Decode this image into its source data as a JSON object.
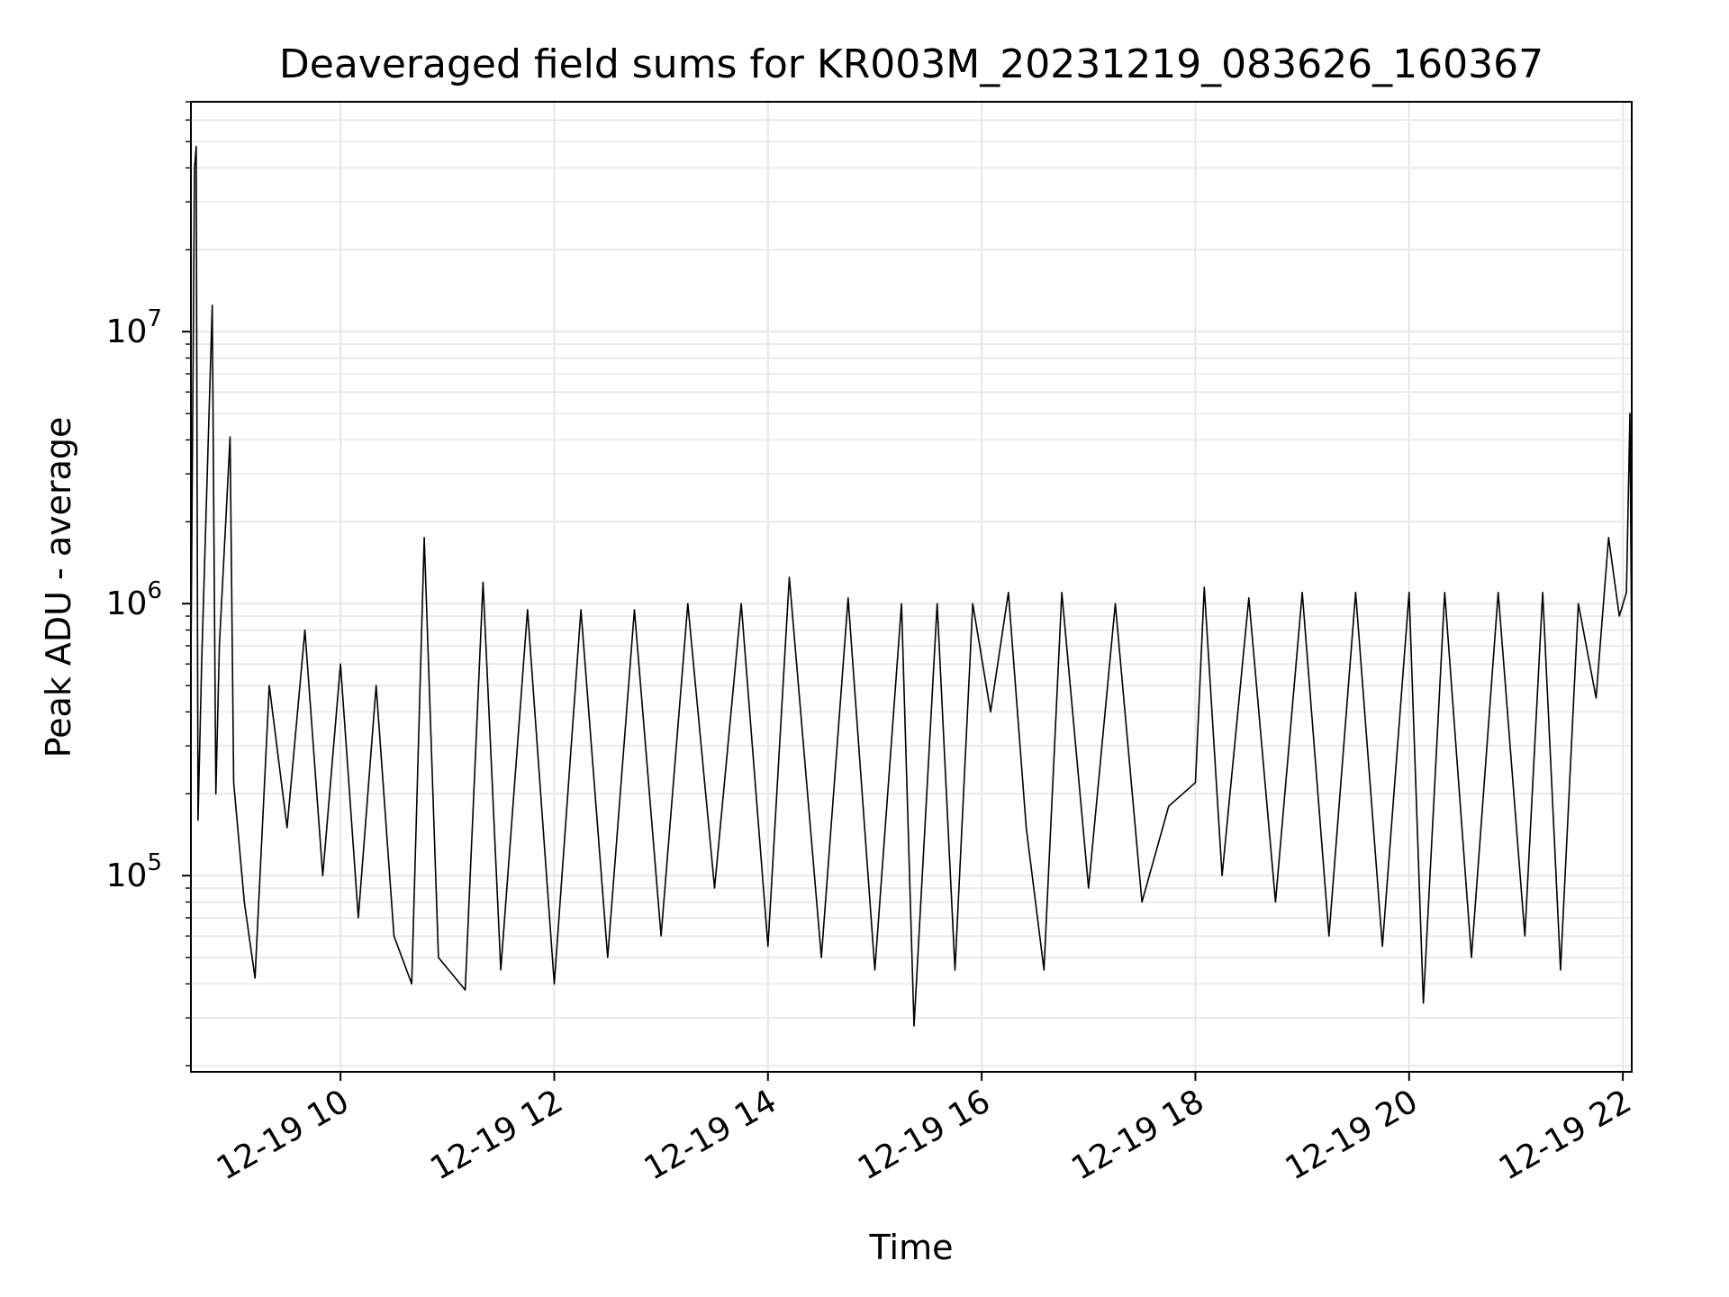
{
  "chart_data": {
    "type": "line",
    "title": "Deaveraged field sums for KR003M_20231219_083626_160367",
    "xlabel": "Time",
    "ylabel": "Peak ADU - average",
    "y_scale": "log",
    "ylim": [
      19000,
      70000000
    ],
    "xlim": [
      "2023-12-19 08:36",
      "2023-12-19 22:05"
    ],
    "grid": true,
    "line_color": "#000000",
    "x_ticks": [
      {
        "t": "2023-12-19 10:00",
        "label": "12-19 10"
      },
      {
        "t": "2023-12-19 12:00",
        "label": "12-19 12"
      },
      {
        "t": "2023-12-19 14:00",
        "label": "12-19 14"
      },
      {
        "t": "2023-12-19 16:00",
        "label": "12-19 16"
      },
      {
        "t": "2023-12-19 18:00",
        "label": "12-19 18"
      },
      {
        "t": "2023-12-19 20:00",
        "label": "12-19 20"
      },
      {
        "t": "2023-12-19 22:00",
        "label": "12-19 22"
      }
    ],
    "y_ticks": [
      {
        "v": 100000,
        "base": "10",
        "exp": "5"
      },
      {
        "v": 1000000,
        "base": "10",
        "exp": "6"
      },
      {
        "v": 10000000,
        "base": "10",
        "exp": "7"
      }
    ],
    "series": [
      {
        "points": [
          [
            "2023-12-19 08:36",
            600000
          ],
          [
            "2023-12-19 08:38",
            40000000
          ],
          [
            "2023-12-19 08:39",
            48000000
          ],
          [
            "2023-12-19 08:40",
            160000
          ],
          [
            "2023-12-19 08:42",
            600000
          ],
          [
            "2023-12-19 08:48",
            12500000
          ],
          [
            "2023-12-19 08:50",
            200000
          ],
          [
            "2023-12-19 08:52",
            700000
          ],
          [
            "2023-12-19 08:58",
            4100000
          ],
          [
            "2023-12-19 09:00",
            220000
          ],
          [
            "2023-12-19 09:06",
            80000
          ],
          [
            "2023-12-19 09:12",
            42000
          ],
          [
            "2023-12-19 09:20",
            500000
          ],
          [
            "2023-12-19 09:30",
            150000
          ],
          [
            "2023-12-19 09:40",
            800000
          ],
          [
            "2023-12-19 09:50",
            100000
          ],
          [
            "2023-12-19 10:00",
            600000
          ],
          [
            "2023-12-19 10:10",
            70000
          ],
          [
            "2023-12-19 10:20",
            500000
          ],
          [
            "2023-12-19 10:30",
            60000
          ],
          [
            "2023-12-19 10:40",
            40000
          ],
          [
            "2023-12-19 10:47",
            1750000
          ],
          [
            "2023-12-19 10:55",
            50000
          ],
          [
            "2023-12-19 11:10",
            38000
          ],
          [
            "2023-12-19 11:20",
            1200000
          ],
          [
            "2023-12-19 11:30",
            45000
          ],
          [
            "2023-12-19 11:45",
            950000
          ],
          [
            "2023-12-19 12:00",
            40000
          ],
          [
            "2023-12-19 12:15",
            950000
          ],
          [
            "2023-12-19 12:30",
            50000
          ],
          [
            "2023-12-19 12:45",
            950000
          ],
          [
            "2023-12-19 13:00",
            60000
          ],
          [
            "2023-12-19 13:15",
            1000000
          ],
          [
            "2023-12-19 13:30",
            90000
          ],
          [
            "2023-12-19 13:45",
            1000000
          ],
          [
            "2023-12-19 14:00",
            55000
          ],
          [
            "2023-12-19 14:12",
            1250000
          ],
          [
            "2023-12-19 14:30",
            50000
          ],
          [
            "2023-12-19 14:45",
            1050000
          ],
          [
            "2023-12-19 15:00",
            45000
          ],
          [
            "2023-12-19 15:15",
            1000000
          ],
          [
            "2023-12-19 15:22",
            28000
          ],
          [
            "2023-12-19 15:35",
            1000000
          ],
          [
            "2023-12-19 15:45",
            45000
          ],
          [
            "2023-12-19 15:55",
            1000000
          ],
          [
            "2023-12-19 16:05",
            400000
          ],
          [
            "2023-12-19 16:15",
            1100000
          ],
          [
            "2023-12-19 16:25",
            150000
          ],
          [
            "2023-12-19 16:35",
            45000
          ],
          [
            "2023-12-19 16:45",
            1100000
          ],
          [
            "2023-12-19 17:00",
            90000
          ],
          [
            "2023-12-19 17:15",
            1000000
          ],
          [
            "2023-12-19 17:30",
            80000
          ],
          [
            "2023-12-19 17:45",
            180000
          ],
          [
            "2023-12-19 18:00",
            220000
          ],
          [
            "2023-12-19 18:05",
            1150000
          ],
          [
            "2023-12-19 18:15",
            100000
          ],
          [
            "2023-12-19 18:30",
            1050000
          ],
          [
            "2023-12-19 18:45",
            80000
          ],
          [
            "2023-12-19 19:00",
            1100000
          ],
          [
            "2023-12-19 19:15",
            60000
          ],
          [
            "2023-12-19 19:30",
            1100000
          ],
          [
            "2023-12-19 19:45",
            55000
          ],
          [
            "2023-12-19 20:00",
            1100000
          ],
          [
            "2023-12-19 20:08",
            34000
          ],
          [
            "2023-12-19 20:20",
            1100000
          ],
          [
            "2023-12-19 20:35",
            50000
          ],
          [
            "2023-12-19 20:50",
            1100000
          ],
          [
            "2023-12-19 21:05",
            60000
          ],
          [
            "2023-12-19 21:15",
            1100000
          ],
          [
            "2023-12-19 21:25",
            45000
          ],
          [
            "2023-12-19 21:35",
            1000000
          ],
          [
            "2023-12-19 21:45",
            450000
          ],
          [
            "2023-12-19 21:52",
            1750000
          ],
          [
            "2023-12-19 21:58",
            900000
          ],
          [
            "2023-12-19 22:02",
            1100000
          ],
          [
            "2023-12-19 22:04",
            5000000
          ],
          [
            "2023-12-19 22:05",
            600000
          ]
        ]
      }
    ]
  }
}
